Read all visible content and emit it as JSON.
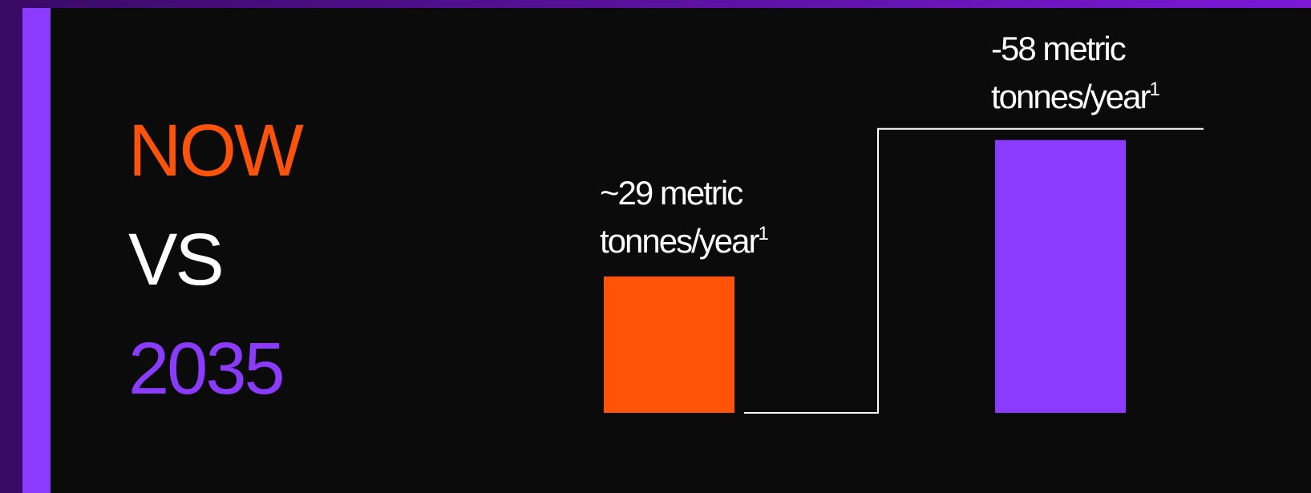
{
  "headline": {
    "line1": "NOW",
    "line2": "VS",
    "line3": "2035"
  },
  "colors": {
    "now": "#ff530a",
    "future": "#8a3bff",
    "connector": "#ffffff"
  },
  "chart_data": {
    "type": "bar",
    "categories": [
      "NOW",
      "2035"
    ],
    "values": [
      29,
      58
    ],
    "ylim": [
      0,
      60
    ],
    "grid": false,
    "title": "",
    "xlabel": "",
    "ylabel": "",
    "data_labels": [
      {
        "line1": "~29 metric",
        "line2": "tonnes/year",
        "footnote": "1"
      },
      {
        "line1": "-58 metric",
        "line2": "tonnes/year",
        "footnote": "1"
      }
    ]
  }
}
